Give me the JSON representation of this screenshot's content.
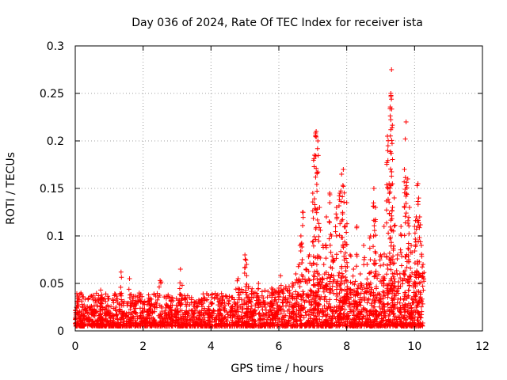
{
  "chart_data": {
    "type": "scatter",
    "title": "Day 036 of 2024, Rate Of TEC Index for receiver ista",
    "xlabel": "GPS time / hours",
    "ylabel": "ROTI / TECUs",
    "xlim": [
      0,
      12
    ],
    "ylim": [
      0,
      0.3
    ],
    "xticks": [
      0,
      2,
      4,
      6,
      8,
      10,
      12
    ],
    "xtick_labels": [
      "0",
      "2",
      "4",
      "6",
      "8",
      "10",
      "12"
    ],
    "yticks": [
      0,
      0.05,
      0.1,
      0.15,
      0.2,
      0.25,
      0.3
    ],
    "ytick_labels": [
      "0",
      "0.05",
      "0.1",
      "0.15",
      "0.2",
      "0.25",
      "0.3"
    ],
    "grid": true,
    "marker": "+",
    "color": "#ff0000",
    "series": [
      {
        "name": "ROTI",
        "x": [
          0.0,
          0.1,
          0.25,
          0.5,
          0.75,
          0.78,
          1.0,
          1.2,
          1.35,
          1.4,
          1.6,
          1.7,
          2.0,
          2.2,
          2.5,
          2.55,
          2.8,
          3.0,
          3.1,
          3.15,
          3.3,
          3.5,
          3.8,
          4.0,
          4.2,
          4.4,
          4.6,
          4.8,
          5.0,
          5.05,
          5.1,
          5.2,
          5.4,
          5.6,
          5.8,
          6.0,
          6.05,
          6.2,
          6.4,
          6.5,
          6.6,
          6.65,
          6.7,
          6.8,
          6.9,
          7.0,
          7.05,
          7.1,
          7.15,
          7.2,
          7.3,
          7.4,
          7.5,
          7.55,
          7.6,
          7.7,
          7.8,
          7.85,
          7.9,
          7.95,
          8.0,
          8.1,
          8.2,
          8.3,
          8.4,
          8.5,
          8.6,
          8.7,
          8.8,
          8.85,
          9.0,
          9.1,
          9.2,
          9.25,
          9.3,
          9.32,
          9.35,
          9.4,
          9.5,
          9.6,
          9.7,
          9.75,
          9.8,
          9.85,
          9.9,
          10.0,
          10.05,
          10.1,
          10.15,
          10.2,
          10.25
        ],
        "y": [
          0.012,
          0.035,
          0.016,
          0.022,
          0.043,
          0.038,
          0.02,
          0.025,
          0.062,
          0.018,
          0.055,
          0.03,
          0.02,
          0.028,
          0.053,
          0.015,
          0.025,
          0.02,
          0.065,
          0.048,
          0.03,
          0.018,
          0.022,
          0.016,
          0.038,
          0.03,
          0.025,
          0.055,
          0.08,
          0.07,
          0.045,
          0.035,
          0.05,
          0.03,
          0.04,
          0.045,
          0.058,
          0.035,
          0.05,
          0.06,
          0.07,
          0.1,
          0.125,
          0.065,
          0.08,
          0.145,
          0.185,
          0.21,
          0.2,
          0.13,
          0.09,
          0.12,
          0.145,
          0.1,
          0.075,
          0.13,
          0.145,
          0.165,
          0.17,
          0.11,
          0.135,
          0.08,
          0.065,
          0.11,
          0.06,
          0.09,
          0.07,
          0.1,
          0.15,
          0.13,
          0.08,
          0.11,
          0.205,
          0.155,
          0.25,
          0.275,
          0.13,
          0.14,
          0.08,
          0.11,
          0.17,
          0.22,
          0.16,
          0.13,
          0.09,
          0.11,
          0.12,
          0.155,
          0.12,
          0.09,
          0.07
        ]
      }
    ],
    "noise_floor": [
      0.005,
      0.04
    ]
  }
}
